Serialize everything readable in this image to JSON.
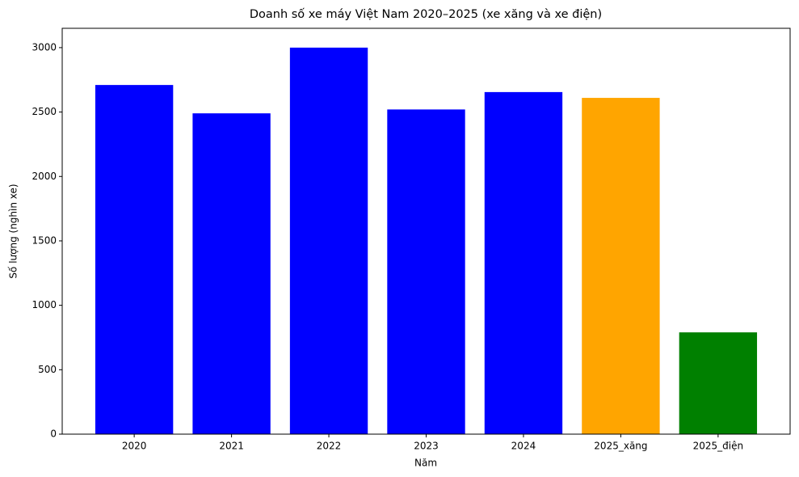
{
  "chart_data": {
    "type": "bar",
    "title": "Doanh số xe máy Việt Nam 2020–2025 (xe xăng và xe điện)",
    "x_label": "Năm",
    "y_label": "Số lượng (nghìn xe)",
    "categories": [
      "2020",
      "2021",
      "2022",
      "2023",
      "2024",
      "2025_xăng",
      "2025_điện"
    ],
    "values": [
      2710,
      2490,
      3000,
      2520,
      2655,
      2610,
      790
    ],
    "colors": [
      "#0000ff",
      "#0000ff",
      "#0000ff",
      "#0000ff",
      "#0000ff",
      "#ffa500",
      "#008000"
    ],
    "ylim": [
      0,
      3150
    ],
    "yticks": [
      0,
      500,
      1000,
      1500,
      2000,
      2500,
      3000
    ],
    "grid": false
  }
}
